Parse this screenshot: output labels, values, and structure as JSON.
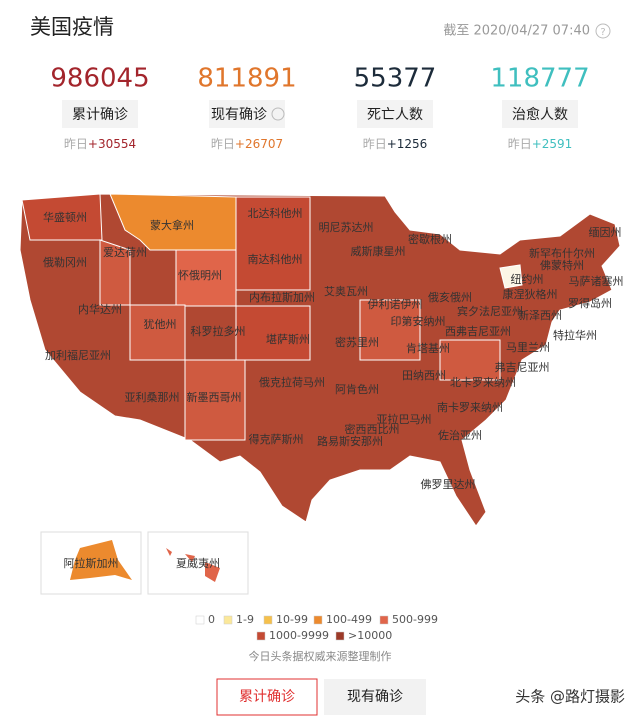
{
  "header": {
    "title": "美国疫情",
    "timestamp": "截至 2020/04/27 07:40"
  },
  "stats": [
    {
      "value": 986045,
      "label": "累计确诊",
      "delta_prefix": "昨日",
      "delta": "+30554",
      "color": "#a3252c",
      "delta_color": "#a3252c"
    },
    {
      "value": 811891,
      "label": "现有确诊",
      "delta_prefix": "昨日",
      "delta": "+26707",
      "color": "#e0762c",
      "delta_color": "#e0762c"
    },
    {
      "value": 55377,
      "label": "死亡人数",
      "delta_prefix": "昨日",
      "delta": "+1256",
      "color": "#1c2b3a",
      "delta_color": "#1c2b3a"
    },
    {
      "value": 118777,
      "label": "治愈人数",
      "delta_prefix": "昨日",
      "delta": "+2591",
      "color": "#3fbfbf",
      "delta_color": "#3fbfbf"
    }
  ],
  "states": [
    "华盛顿州",
    "蒙大拿州",
    "北达科他州",
    "明尼苏达州",
    "缅因州",
    "密歇根州",
    "俄勒冈州",
    "爱达荷州",
    "南达科他州",
    "威斯康星州",
    "新罕布什尔州",
    "佛蒙特州",
    "纽约州",
    "马萨诸塞州",
    "怀俄明州",
    "艾奥瓦州",
    "康涅狄格州",
    "罗得岛州",
    "内布拉斯加州",
    "伊利诺伊州",
    "俄亥俄州",
    "宾夕法尼亚州",
    "新泽西州",
    "内华达州",
    "犹他州",
    "科罗拉多州",
    "印第安纳州",
    "西弗吉尼亚州",
    "特拉华州",
    "加利福尼亚州",
    "堪萨斯州",
    "密苏里州",
    "肯塔基州",
    "马里兰州",
    "弗吉尼亚州",
    "俄克拉荷马州",
    "田纳西州",
    "北卡罗来纳州",
    "阿肯色州",
    "亚利桑那州",
    "新墨西哥州",
    "亚拉巴马州",
    "密西西比州",
    "南卡罗来纳州",
    "路易斯安那州",
    "得克萨斯州",
    "佐治亚州",
    "佛罗里达州"
  ],
  "insets": [
    "阿拉斯加州",
    "夏威夷州"
  ],
  "legend": [
    {
      "label": "0",
      "color": "#ffffff"
    },
    {
      "label": "1-9",
      "color": "#fbe89a"
    },
    {
      "label": "10-99",
      "color": "#f5c04c"
    },
    {
      "label": "100-499",
      "color": "#ec8a2e"
    },
    {
      "label": "500-999",
      "color": "#e0654a"
    },
    {
      "label": "1000-9999",
      "color": "#c44a33"
    },
    {
      "label": ">10000",
      "color": "#9c3a28"
    }
  ],
  "source": "今日头条据权威来源整理制作",
  "buttons": [
    "累计确诊",
    "现有确诊"
  ],
  "watermark": "头条 @路灯摄影"
}
